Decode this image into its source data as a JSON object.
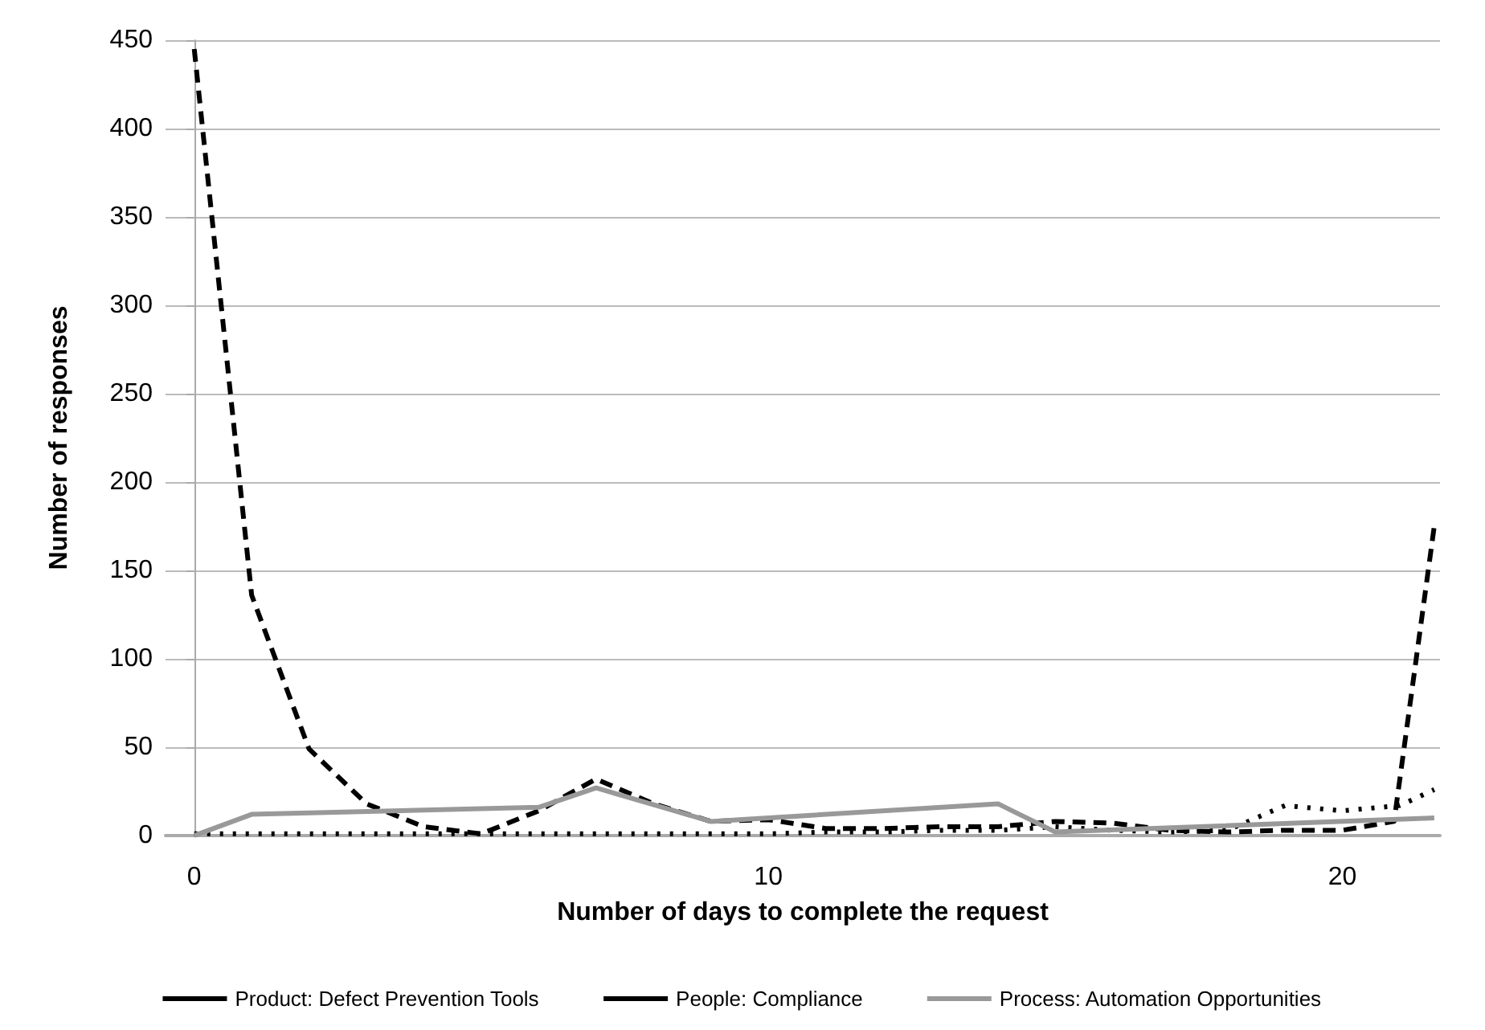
{
  "chart_data": {
    "type": "line",
    "xlabel": "Number of days to complete the request",
    "ylabel": "Number of responses",
    "xlim": [
      -0.5,
      21.7
    ],
    "xticks": [
      0,
      10,
      20
    ],
    "ylim": [
      0,
      450
    ],
    "yticks": [
      0,
      50,
      100,
      150,
      200,
      250,
      300,
      350,
      400,
      450
    ],
    "grid": "y",
    "legend": "bottom",
    "marker": "none",
    "series": [
      {
        "name": "Product: Defect Prevention Tools",
        "color": "#000000",
        "line_style": "dashed",
        "x": [
          0,
          1,
          2,
          3,
          4,
          5,
          6,
          7,
          8,
          9,
          10,
          11,
          12,
          13,
          14,
          15,
          16,
          17,
          18,
          19,
          20,
          20.9,
          21.6
        ],
        "values": [
          445,
          136,
          49,
          18,
          5,
          1,
          14,
          32,
          18,
          8,
          9,
          4,
          4,
          5,
          5,
          8,
          7,
          3,
          2,
          3,
          3,
          8,
          175
        ]
      },
      {
        "name": "People: Compliance",
        "color": "#000000",
        "line_style": "dotted",
        "x": [
          0,
          1,
          2,
          3,
          4,
          5,
          6,
          7,
          8,
          9,
          10,
          11,
          12,
          13,
          14,
          15,
          16,
          17,
          18,
          19,
          20,
          21,
          21.6
        ],
        "values": [
          1,
          1,
          1,
          1,
          1,
          1,
          1,
          1,
          1,
          1,
          1,
          2,
          2,
          3,
          3,
          5,
          3,
          2,
          3,
          17,
          14,
          17,
          26
        ]
      },
      {
        "name": "Process: Automation Opportunities",
        "color": "#999999",
        "line_style": "solid",
        "x": [
          0,
          1,
          6,
          7,
          9,
          14,
          15,
          21.6
        ],
        "values": [
          0,
          12,
          16,
          27,
          8,
          18,
          2,
          10
        ]
      }
    ]
  }
}
